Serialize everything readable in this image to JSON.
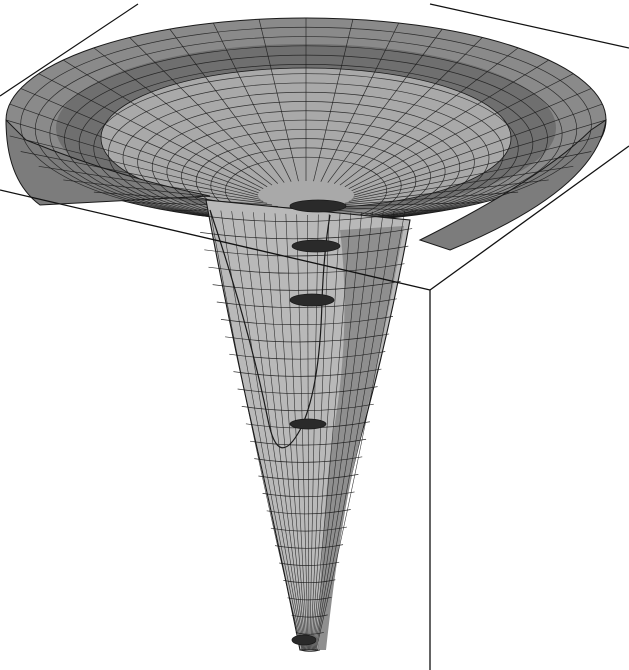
{
  "figure": {
    "kind": "3d-wireframe-surface",
    "description_text": "",
    "style": {
      "background": "#ffffff",
      "frame_line": "#111111",
      "mesh_line": "#1a1a1a",
      "rim_fill_outer": "#8a8a8a",
      "rim_fill_band": "#6f6f6f",
      "bowl_fill": "#a9a9a9",
      "funnel_fill": "#b9b9b9",
      "funnel_shadow": "#8f8f8f",
      "throat_fill": "#2a2a2a"
    }
  }
}
